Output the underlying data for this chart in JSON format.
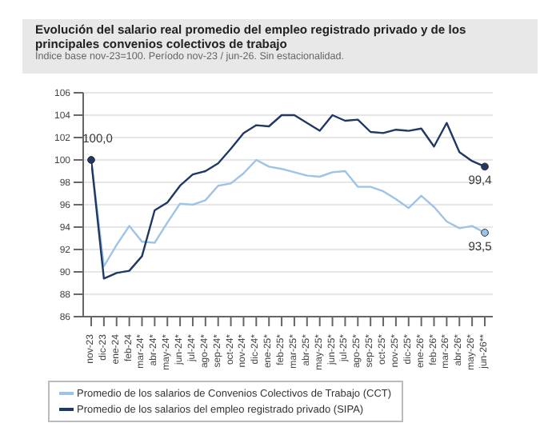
{
  "chart_data": {
    "type": "line",
    "title": "Evolución del salario real promedio del empleo registrado privado y de los principales convenios colectivos de trabajo",
    "subtitle": "Índice base nov-23=100. Período nov-23 / jun-26. Sin estacionalidad.",
    "categories": [
      "nov-23",
      "dic-23",
      "ene-24",
      "feb-24",
      "mar-24*",
      "abr-24*",
      "may-24*",
      "jun-24*",
      "jul-24*",
      "ago-24*",
      "sep-24*",
      "oct-24*",
      "nov-24*",
      "dic-24*",
      "ene-25*",
      "feb-25*",
      "mar-25*",
      "abr-25*",
      "may-25*",
      "jun-25*",
      "jul-25*",
      "ago-25*",
      "sep-25*",
      "oct-25*",
      "nov-25*",
      "dic-25*",
      "ene-26*",
      "feb-26*",
      "mar-26*",
      "abr-26*",
      "may-26*",
      "jun-26**"
    ],
    "series": [
      {
        "name": "Promedio de los salarios de Convenios Colectivos de Trabajo (CCT)",
        "color": "#9dc3e6",
        "values": [
          100,
          90.5,
          92.4,
          94.1,
          92.7,
          92.6,
          94.4,
          96.1,
          96.0,
          96.4,
          97.7,
          97.9,
          98.8,
          100.0,
          99.4,
          99.2,
          98.9,
          98.6,
          98.5,
          98.9,
          99.0,
          97.6,
          97.6,
          97.2,
          96.5,
          95.7,
          96.8,
          95.8,
          94.5,
          93.9,
          94.1,
          93.5
        ],
        "value_labels": [
          null,
          null,
          null,
          null,
          null,
          null,
          null,
          null,
          null,
          null,
          null,
          null,
          null,
          null,
          null,
          null,
          null,
          null,
          null,
          null,
          null,
          null,
          null,
          null,
          null,
          null,
          null,
          null,
          null,
          null,
          null,
          "93,5"
        ]
      },
      {
        "name": "Promedio de los salarios del empleo registrado privado (SIPA)",
        "color": "#1f3864",
        "values": [
          100,
          89.4,
          89.9,
          90.1,
          91.4,
          95.5,
          96.2,
          97.7,
          98.7,
          99.0,
          99.7,
          101.0,
          102.4,
          103.1,
          103.0,
          104.0,
          104.0,
          103.3,
          102.6,
          104.0,
          103.5,
          103.6,
          102.5,
          102.4,
          102.7,
          102.6,
          102.8,
          101.2,
          103.3,
          100.7,
          99.9,
          99.4
        ],
        "value_labels": [
          "100,0",
          null,
          null,
          null,
          null,
          null,
          null,
          null,
          null,
          null,
          null,
          null,
          null,
          null,
          null,
          null,
          null,
          null,
          null,
          null,
          null,
          null,
          null,
          null,
          null,
          null,
          null,
          null,
          null,
          null,
          null,
          "99,4"
        ]
      }
    ],
    "ylim": [
      86,
      106
    ],
    "yticks": [
      86,
      88,
      90,
      92,
      94,
      96,
      98,
      100,
      102,
      104,
      106
    ],
    "grid": "y",
    "legend": "bottom",
    "marker": "none",
    "line_style": "solid"
  }
}
